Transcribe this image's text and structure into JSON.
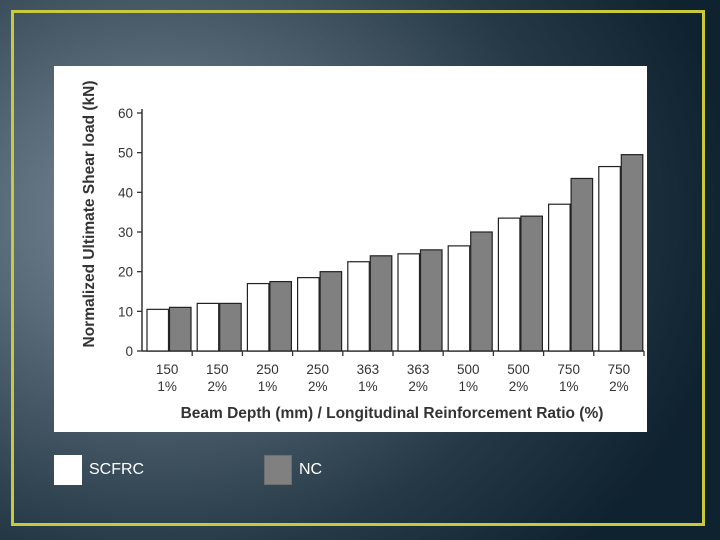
{
  "chart_data": {
    "type": "bar",
    "title": "",
    "ylabel": "Normalized Ultimate Shear load (kN)",
    "xlabel": "Beam Depth (mm) / Longitudinal Reinforcement Ratio (%)",
    "ylim": [
      0,
      60
    ],
    "yticks": [
      0,
      10,
      20,
      30,
      40,
      50,
      60
    ],
    "categories": [
      {
        "depth": "150",
        "ratio": "1%"
      },
      {
        "depth": "150",
        "ratio": "2%"
      },
      {
        "depth": "250",
        "ratio": "1%"
      },
      {
        "depth": "250",
        "ratio": "2%"
      },
      {
        "depth": "363",
        "ratio": "1%"
      },
      {
        "depth": "363",
        "ratio": "2%"
      },
      {
        "depth": "500",
        "ratio": "1%"
      },
      {
        "depth": "500",
        "ratio": "2%"
      },
      {
        "depth": "750",
        "ratio": "1%"
      },
      {
        "depth": "750",
        "ratio": "2%"
      }
    ],
    "series": [
      {
        "name": "SCFRC",
        "color": "#ffffff",
        "values": [
          10.5,
          12,
          17,
          18.5,
          22.5,
          24.5,
          26.5,
          33.5,
          37,
          46.5
        ]
      },
      {
        "name": "NC",
        "color": "#808080",
        "values": [
          11,
          12,
          17.5,
          20,
          24,
          25.5,
          30,
          34,
          43.5,
          49.5
        ]
      }
    ],
    "grid": false,
    "legend_position": "bottom-left"
  },
  "legend": [
    {
      "label": "SCFRC",
      "color": "#ffffff"
    },
    {
      "label": "NC",
      "color": "#808080"
    }
  ],
  "colors": {
    "frame_border": "#c9c93c",
    "bar_outline": "#222222"
  }
}
